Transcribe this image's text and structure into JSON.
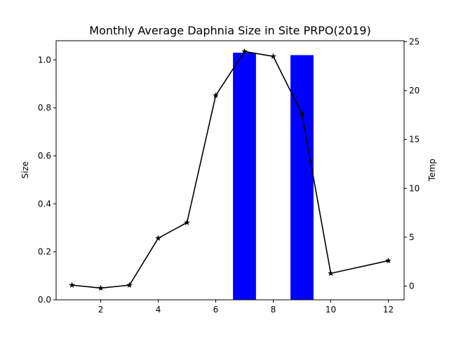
{
  "chart_data": {
    "type": "bar+line",
    "title": "Monthly Average Daphnia Size in Site PRPO(2019)",
    "xlabel": "",
    "ylabel_left": "Size",
    "ylabel_right": "Temp",
    "xlim": [
      0.45,
      12.55
    ],
    "ylim_left": [
      0,
      1.08
    ],
    "ylim_right": [
      -1.4,
      25.1
    ],
    "xticks": [
      2,
      4,
      6,
      8,
      10,
      12
    ],
    "yticks_left": [
      "0.0",
      "0.2",
      "0.4",
      "0.6",
      "0.8",
      "1.0"
    ],
    "yticks_right": [
      "0",
      "5",
      "10",
      "15",
      "20",
      "25"
    ],
    "grid": false,
    "legend": "none",
    "bars": {
      "axis": "left",
      "color": "#0000ff",
      "width": 0.8,
      "x": [
        7,
        9
      ],
      "values": [
        1.03,
        1.02
      ]
    },
    "line": {
      "axis": "right",
      "color": "#000000",
      "marker": "star",
      "x": [
        1,
        2,
        3,
        4,
        5,
        6,
        7,
        8,
        9,
        10,
        12
      ],
      "values": [
        0.1,
        -0.2,
        0.1,
        4.9,
        6.5,
        19.5,
        24.0,
        23.5,
        17.6,
        1.3,
        2.6
      ]
    }
  }
}
